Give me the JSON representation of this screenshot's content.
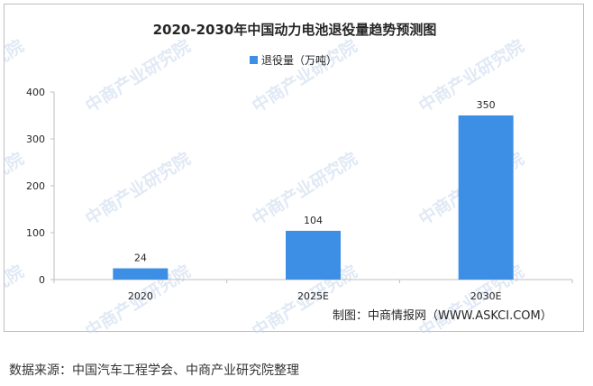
{
  "chart_data": {
    "type": "bar",
    "title": "2020-2030年中国动力电池退役量趋势预测图",
    "categories": [
      "2020",
      "2025E",
      "2030E"
    ],
    "series": [
      {
        "name": "退役量（万吨）",
        "values": [
          24,
          104,
          350
        ],
        "color": "#3d8fe6"
      }
    ],
    "data_labels": [
      "24",
      "104",
      "350"
    ],
    "y_ticks": [
      0,
      100,
      200,
      300,
      400
    ],
    "ylim": [
      0,
      400
    ],
    "grid": false,
    "legend_position": "top-center"
  },
  "credit": "制图：中商情报网（WWW.ASKCI.COM）",
  "source_note": "数据来源：中国汽车工程学会、中商产业研究院整理",
  "watermark_text": "中商产业研究院",
  "colors": {
    "bar": "#3d8fe6",
    "axis": "#bfbfbf",
    "watermark": "#c8d8ee"
  }
}
